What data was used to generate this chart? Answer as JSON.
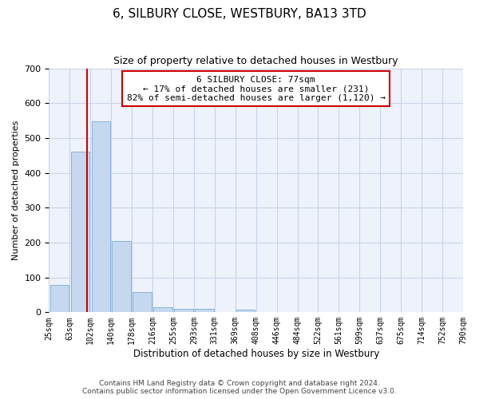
{
  "title": "6, SILBURY CLOSE, WESTBURY, BA13 3TD",
  "subtitle": "Size of property relative to detached houses in Westbury",
  "xlabel": "Distribution of detached houses by size in Westbury",
  "ylabel": "Number of detached properties",
  "bar_color": "#c5d8f0",
  "bar_edge_color": "#8ab4d8",
  "bar_values": [
    78,
    462,
    548,
    204,
    57,
    15,
    10,
    10,
    0,
    8,
    0,
    0,
    0,
    0,
    0,
    0,
    0,
    0,
    0,
    0
  ],
  "categories": [
    "25sqm",
    "63sqm",
    "102sqm",
    "140sqm",
    "178sqm",
    "216sqm",
    "255sqm",
    "293sqm",
    "331sqm",
    "369sqm",
    "408sqm",
    "446sqm",
    "484sqm",
    "522sqm",
    "561sqm",
    "599sqm",
    "637sqm",
    "675sqm",
    "714sqm",
    "752sqm",
    "790sqm"
  ],
  "ylim": [
    0,
    700
  ],
  "yticks": [
    0,
    100,
    200,
    300,
    400,
    500,
    600,
    700
  ],
  "property_line_x": 1.35,
  "annotation_text": "6 SILBURY CLOSE: 77sqm\n← 17% of detached houses are smaller (231)\n82% of semi-detached houses are larger (1,120) →",
  "annotation_box_color": "#ffffff",
  "annotation_box_edge": "#cc0000",
  "red_line_color": "#cc0000",
  "footer_text": "Contains HM Land Registry data © Crown copyright and database right 2024.\nContains public sector information licensed under the Open Government Licence v3.0.",
  "bg_color": "#eef2fb",
  "grid_color": "#c8d4e8"
}
